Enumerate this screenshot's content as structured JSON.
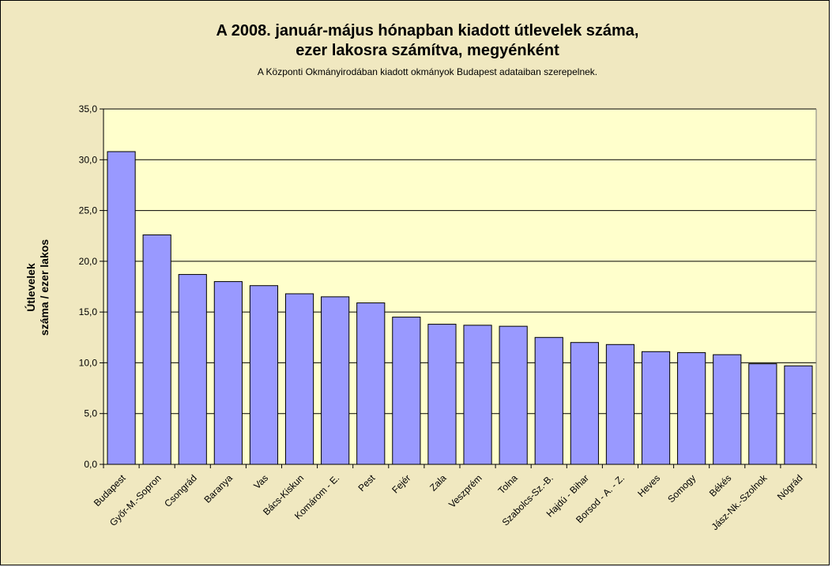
{
  "chart_data": {
    "type": "bar",
    "title_lines": [
      "A 2008. január-május hónapban kiadott útlevelek száma,",
      "ezer lakosra számítva, megyénként"
    ],
    "subtitle": "A Központi Okmányirodában kiadott okmányok Budapest adataiban szerepelnek.",
    "ylabel_lines": [
      "Útlevelek",
      "száma / ezer lakos"
    ],
    "xlabel": "",
    "ylim": [
      0,
      35
    ],
    "y_ticks": [
      "0,0",
      "5,0",
      "10,0",
      "15,0",
      "20,0",
      "25,0",
      "30,0",
      "35,0"
    ],
    "grid": true,
    "bar_color": "#9999ff",
    "plot_background": "#ffffcc",
    "chart_background": "#f0e8c0",
    "categories": [
      "Budapest",
      "Győr-M.-Sopron",
      "Csongrád",
      "Baranya",
      "Vas",
      "Bács-Kiskun",
      "Komárom - E.",
      "Pest",
      "Fejér",
      "Zala",
      "Veszprém",
      "Tolna",
      "Szabolcs-Sz.-B.",
      "Hajdú - Bihar",
      "Borsod - A. - Z.",
      "Heves",
      "Somogy",
      "Békés",
      "Jász-Nk.-Szolnok",
      "Nógrád"
    ],
    "values": [
      30.8,
      22.6,
      18.7,
      18.0,
      17.6,
      16.8,
      16.5,
      15.9,
      14.5,
      13.8,
      13.7,
      13.6,
      12.5,
      12.0,
      11.8,
      11.1,
      11.0,
      10.8,
      9.9,
      9.7
    ]
  }
}
